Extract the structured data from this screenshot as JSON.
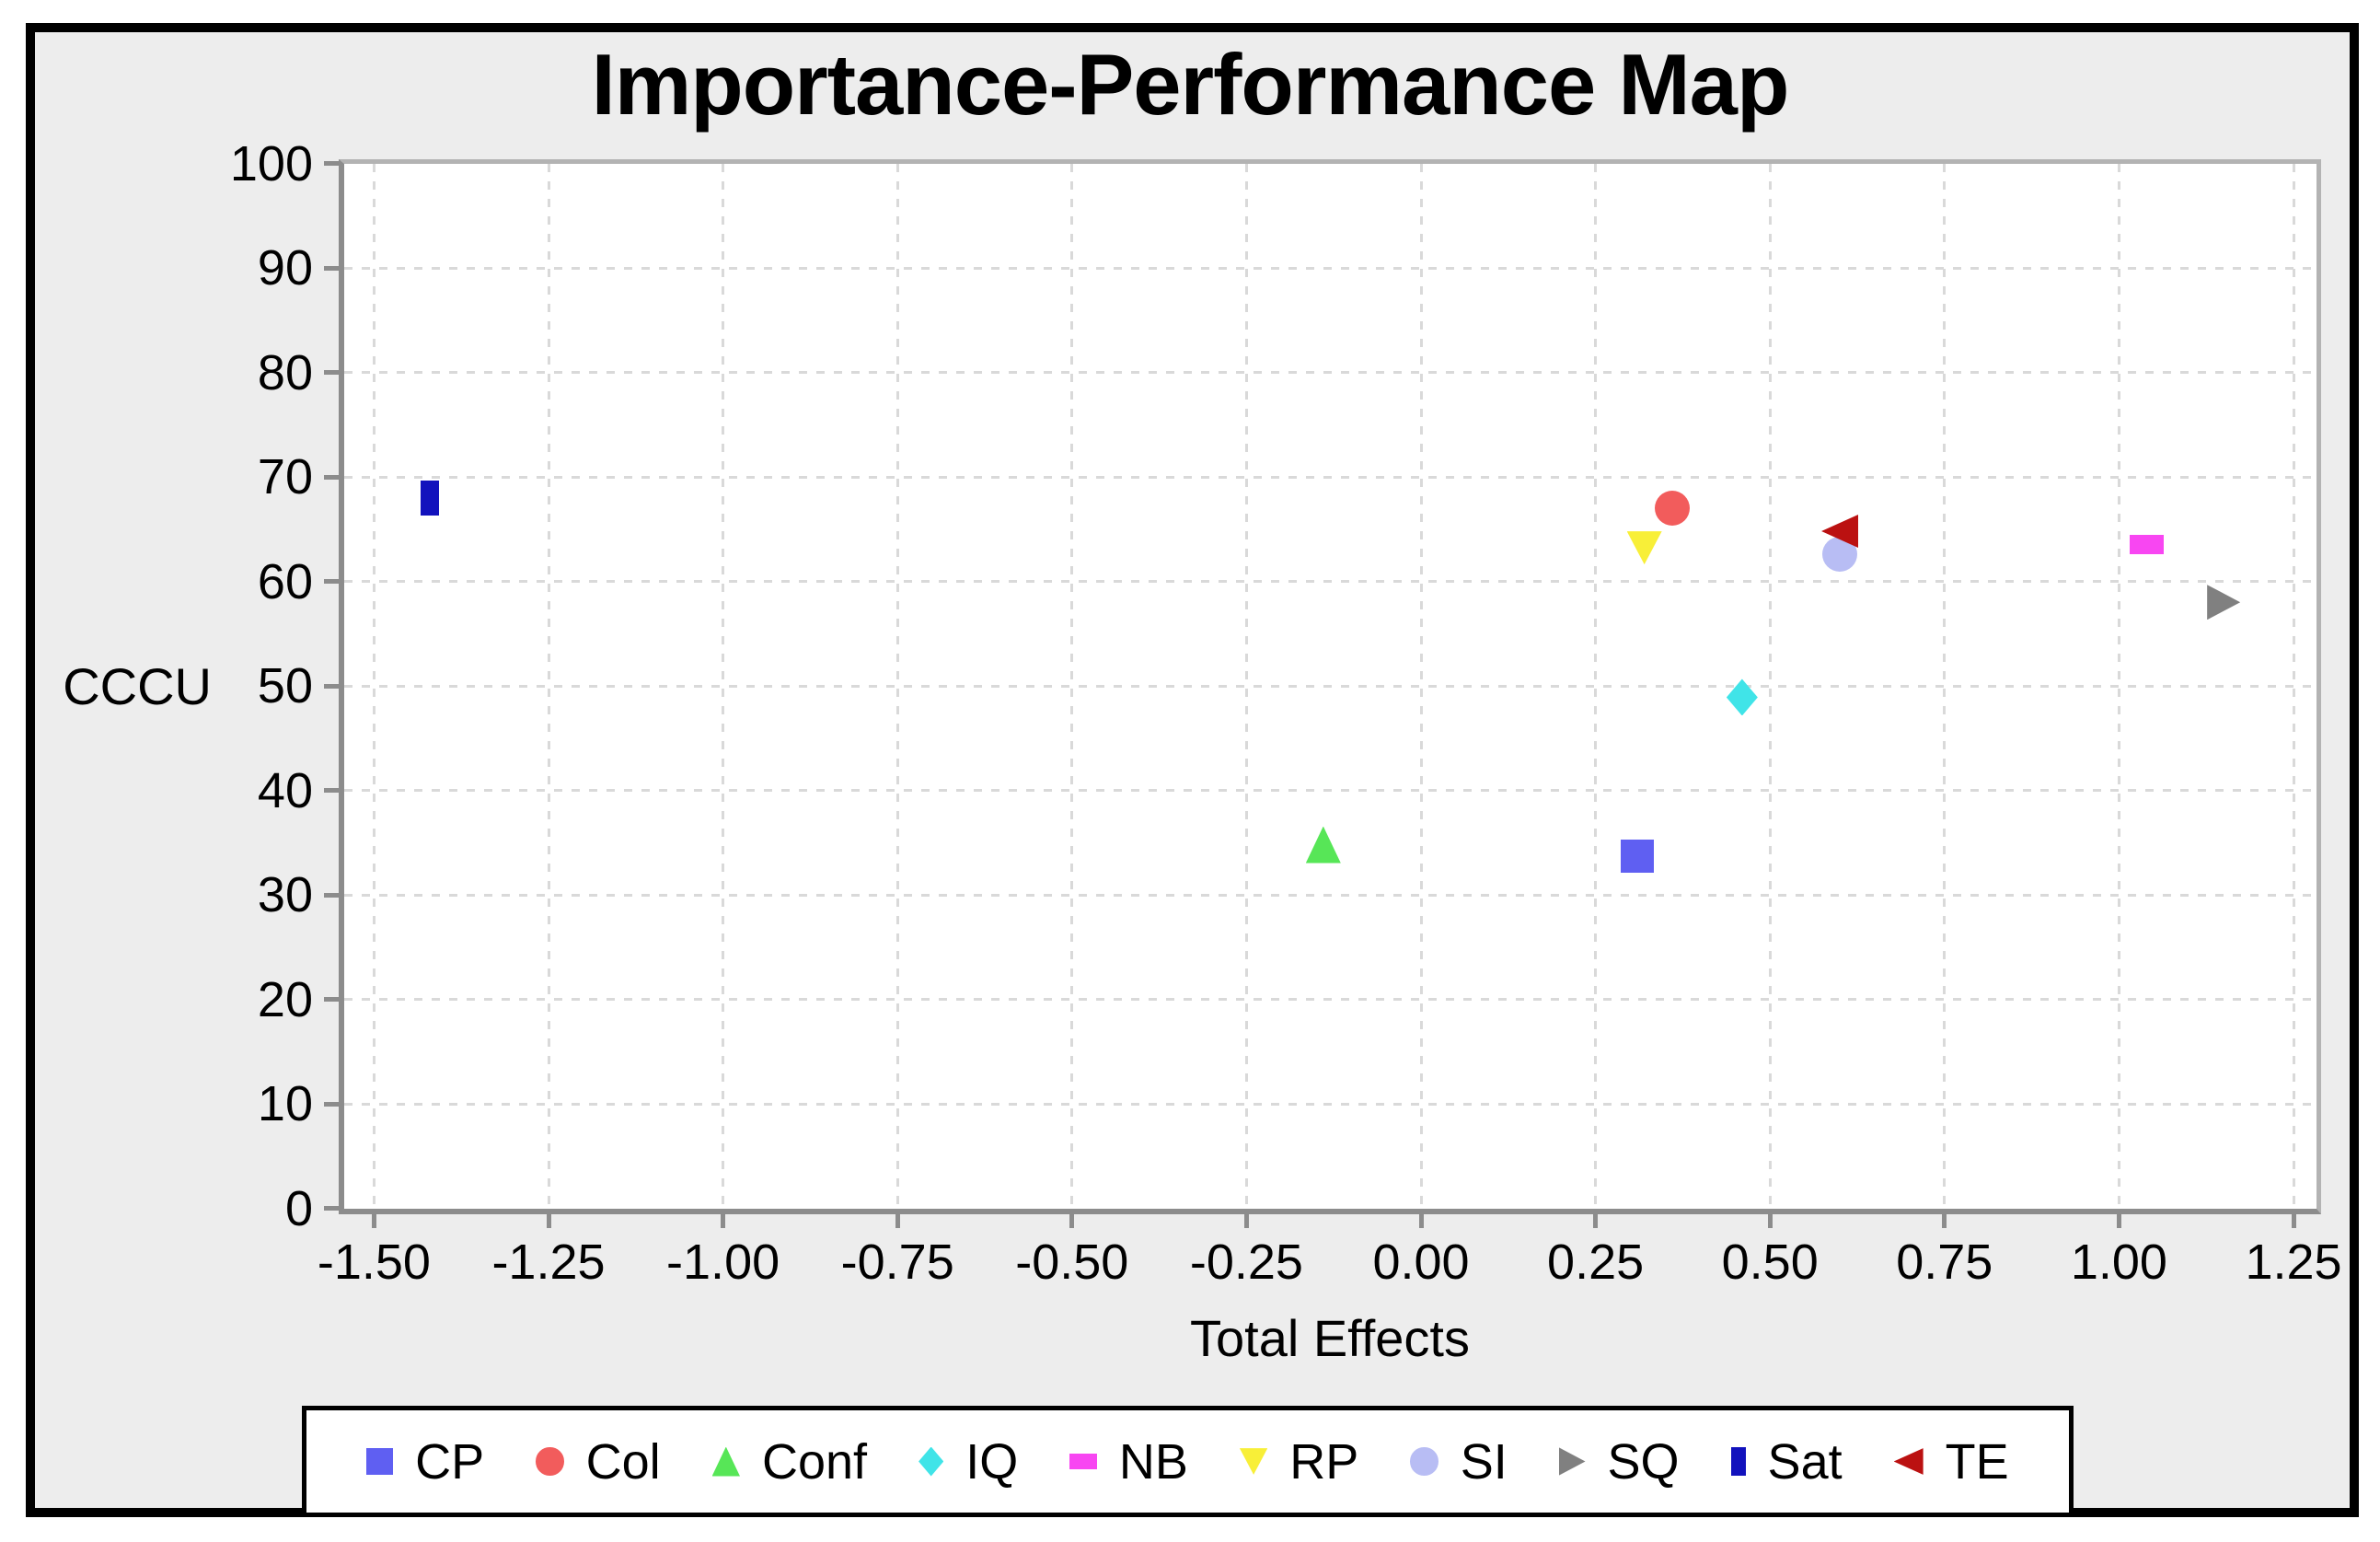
{
  "window": {
    "background": "#ededed",
    "plot_background": "#ffffff",
    "frame_border_color": "#000000",
    "axis_color": "#8c8c8c",
    "plot_edge_color": "#b3b3b3",
    "gridline_color": "#d9d9d9"
  },
  "chart_data": {
    "type": "scatter",
    "title": "Importance-Performance Map",
    "xlabel": "Total Effects",
    "ylabel": "CCCU",
    "xlim": [
      -1.5,
      1.25
    ],
    "ylim": [
      0,
      100
    ],
    "grid": "dashed",
    "legend_position": "bottom",
    "x_ticks": [
      -1.5,
      -1.25,
      -1.0,
      -0.75,
      -0.5,
      -0.25,
      0.0,
      0.25,
      0.5,
      0.75,
      1.0,
      1.25
    ],
    "x_tick_labels": [
      "-1.50",
      "-1.25",
      "-1.00",
      "-0.75",
      "-0.50",
      "-0.25",
      "0.00",
      "0.25",
      "0.50",
      "0.75",
      "1.00",
      "1.25"
    ],
    "y_ticks": [
      0,
      10,
      20,
      30,
      40,
      50,
      60,
      70,
      80,
      90,
      100
    ],
    "y_tick_labels": [
      "0",
      "10",
      "20",
      "30",
      "40",
      "50",
      "60",
      "70",
      "80",
      "90",
      "100"
    ],
    "series": [
      {
        "name": "CP",
        "shape": "square",
        "color": "#5f5ff2",
        "x": 0.31,
        "y": 33.7
      },
      {
        "name": "Col",
        "shape": "circle",
        "color": "#f25c5c",
        "x": 0.36,
        "y": 67.0
      },
      {
        "name": "Conf",
        "shape": "triangle-up",
        "color": "#57e657",
        "x": -0.14,
        "y": 34.8
      },
      {
        "name": "IQ",
        "shape": "diamond",
        "color": "#40e4e8",
        "x": 0.46,
        "y": 48.9
      },
      {
        "name": "NB",
        "shape": "rect-h",
        "color": "#f846f2",
        "x": 1.04,
        "y": 63.5
      },
      {
        "name": "RP",
        "shape": "triangle-down",
        "color": "#f8ef38",
        "x": 0.32,
        "y": 63.2
      },
      {
        "name": "SI",
        "shape": "circle",
        "color": "#b8bdf4",
        "x": 0.6,
        "y": 62.6
      },
      {
        "name": "SQ",
        "shape": "triangle-right",
        "color": "#808080",
        "x": 1.15,
        "y": 58.0
      },
      {
        "name": "Sat",
        "shape": "rect-v",
        "color": "#1212bd",
        "x": -1.42,
        "y": 68.0
      },
      {
        "name": "TE",
        "shape": "triangle-left",
        "color": "#bb1111",
        "x": 0.6,
        "y": 64.8
      }
    ]
  }
}
